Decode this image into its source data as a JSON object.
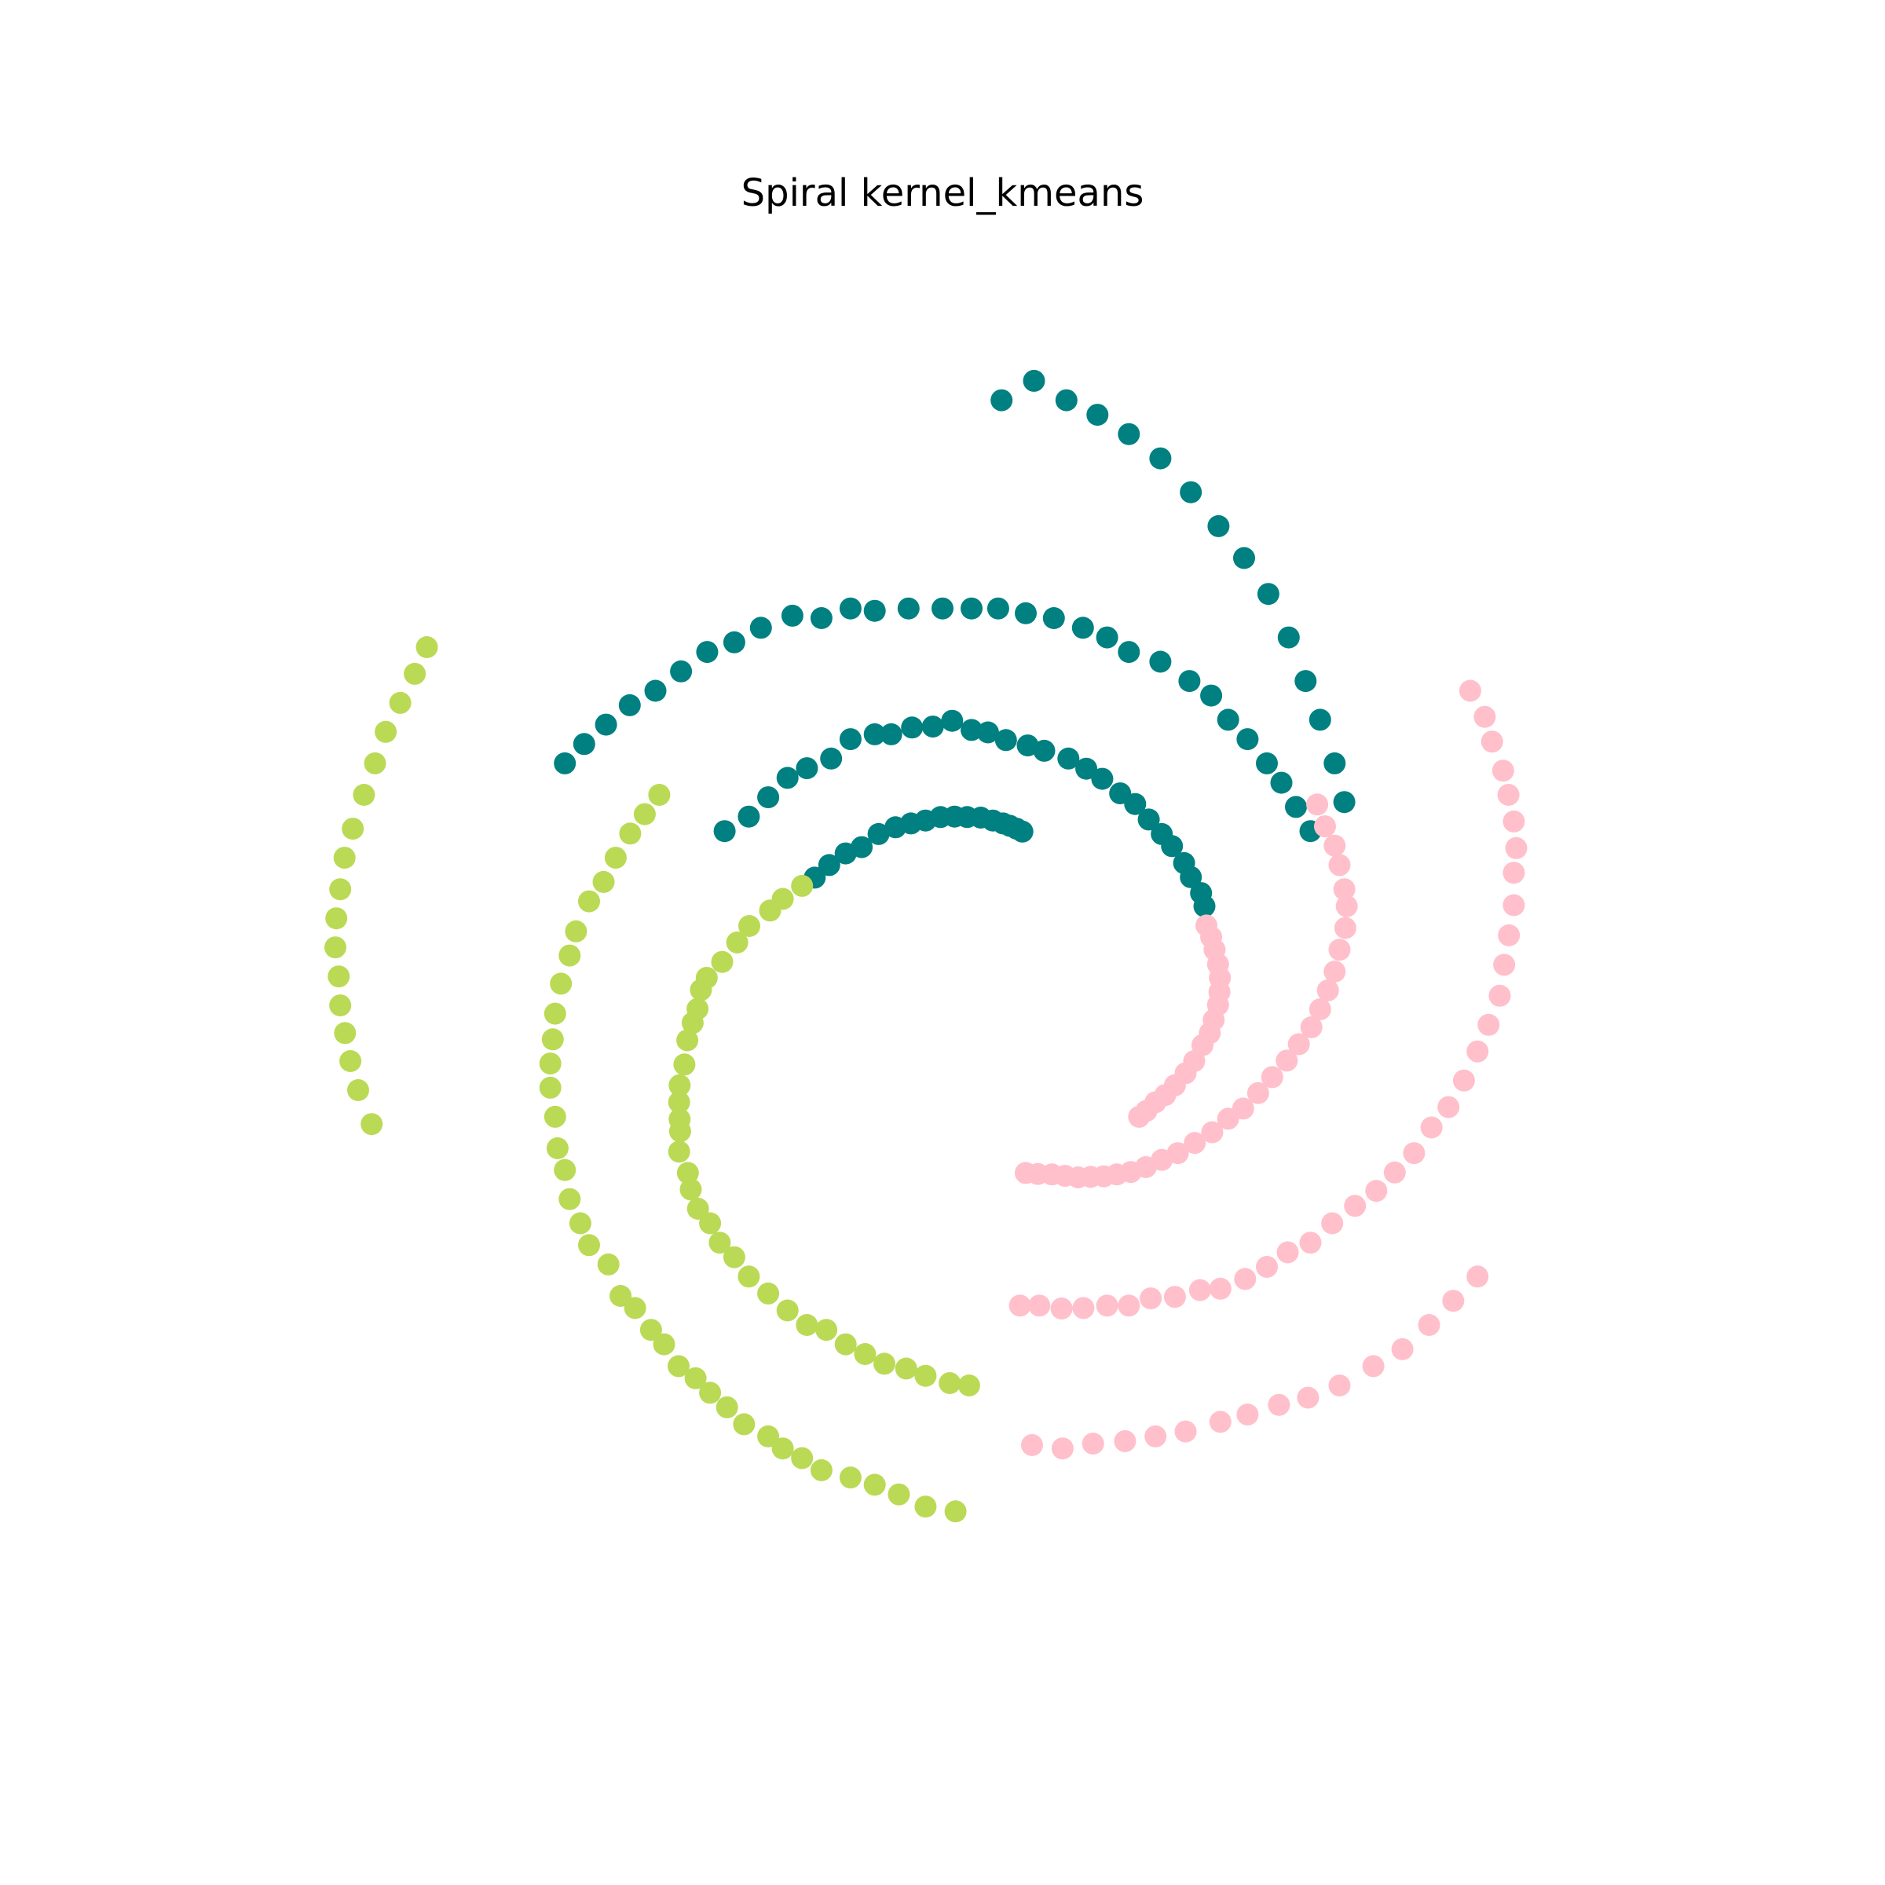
{
  "chart_data": {
    "type": "scatter",
    "title": "Spiral kernel_kmeans",
    "xlabel": "",
    "ylabel": "",
    "axes_visible": false,
    "grid": false,
    "legend": "none",
    "xlim": [
      -14.6,
      14.6
    ],
    "ylim": [
      -14.6,
      14.6
    ],
    "note_units": "data units (estimated; axes hidden in original)",
    "series": [
      {
        "color": "#008080",
        "points": [
          [
            1.22,
            11.2
          ],
          [
            1.89,
            11.6
          ],
          [
            2.56,
            11.2
          ],
          [
            3.2,
            10.9
          ],
          [
            3.85,
            10.5
          ],
          [
            4.5,
            10.0
          ],
          [
            5.13,
            9.3
          ],
          [
            5.7,
            8.6
          ],
          [
            6.23,
            7.94
          ],
          [
            6.73,
            7.2
          ],
          [
            7.15,
            6.3
          ],
          [
            7.5,
            5.4
          ],
          [
            7.8,
            4.6
          ],
          [
            8.1,
            3.7
          ],
          [
            8.3,
            2.9
          ],
          [
            -7.8,
            3.7
          ],
          [
            -7.4,
            4.1
          ],
          [
            -6.95,
            4.5
          ],
          [
            -6.46,
            4.9
          ],
          [
            -5.93,
            5.2
          ],
          [
            -5.4,
            5.6
          ],
          [
            -4.86,
            6.0
          ],
          [
            -4.3,
            6.2
          ],
          [
            -3.75,
            6.5
          ],
          [
            -3.1,
            6.75
          ],
          [
            -2.5,
            6.7
          ],
          [
            -1.9,
            6.9
          ],
          [
            -1.4,
            6.85
          ],
          [
            -0.7,
            6.9
          ],
          [
            0.0,
            6.9
          ],
          [
            0.6,
            6.9
          ],
          [
            1.15,
            6.9
          ],
          [
            1.72,
            6.8
          ],
          [
            2.3,
            6.7
          ],
          [
            2.9,
            6.5
          ],
          [
            3.4,
            6.3
          ],
          [
            3.85,
            6.0
          ],
          [
            4.5,
            5.8
          ],
          [
            5.1,
            5.4
          ],
          [
            5.55,
            5.1
          ],
          [
            5.9,
            4.6
          ],
          [
            6.3,
            4.2
          ],
          [
            6.7,
            3.7
          ],
          [
            7.0,
            3.3
          ],
          [
            7.3,
            2.8
          ],
          [
            7.6,
            2.3
          ],
          [
            -4.5,
            2.3
          ],
          [
            -4.0,
            2.6
          ],
          [
            -3.6,
            3.0
          ],
          [
            -3.2,
            3.4
          ],
          [
            -2.8,
            3.6
          ],
          [
            -2.3,
            3.8
          ],
          [
            -1.9,
            4.2
          ],
          [
            -1.4,
            4.3
          ],
          [
            -1.06,
            4.3
          ],
          [
            -0.63,
            4.44
          ],
          [
            -0.2,
            4.46
          ],
          [
            0.2,
            4.58
          ],
          [
            0.6,
            4.39
          ],
          [
            0.94,
            4.34
          ],
          [
            1.31,
            4.18
          ],
          [
            1.76,
            4.07
          ],
          [
            2.1,
            3.96
          ],
          [
            2.6,
            3.8
          ],
          [
            2.97,
            3.59
          ],
          [
            3.3,
            3.38
          ],
          [
            3.67,
            3.08
          ],
          [
            3.98,
            2.86
          ],
          [
            4.26,
            2.54
          ],
          [
            4.53,
            2.24
          ],
          [
            4.74,
            1.99
          ],
          [
            4.99,
            1.64
          ],
          [
            5.13,
            1.35
          ],
          [
            5.34,
            1.02
          ],
          [
            5.41,
            0.75
          ],
          [
            -2.64,
            1.34
          ],
          [
            -2.34,
            1.6
          ],
          [
            -2.0,
            1.84
          ],
          [
            -1.67,
            1.97
          ],
          [
            -1.32,
            2.24
          ],
          [
            -0.97,
            2.38
          ],
          [
            -0.65,
            2.46
          ],
          [
            -0.35,
            2.52
          ],
          [
            -0.04,
            2.59
          ],
          [
            0.25,
            2.6
          ],
          [
            0.51,
            2.59
          ],
          [
            0.79,
            2.58
          ],
          [
            1.04,
            2.52
          ],
          [
            1.25,
            2.46
          ],
          [
            1.39,
            2.41
          ],
          [
            1.53,
            2.35
          ],
          [
            1.65,
            2.29
          ]
        ]
      },
      {
        "color": "#ffc0cb",
        "points": [
          [
            5.45,
            0.35
          ],
          [
            5.55,
            0.11
          ],
          [
            5.62,
            -0.15
          ],
          [
            5.69,
            -0.45
          ],
          [
            5.73,
            -0.73
          ],
          [
            5.72,
            -1.02
          ],
          [
            5.69,
            -1.29
          ],
          [
            5.6,
            -1.6
          ],
          [
            5.52,
            -1.87
          ],
          [
            5.37,
            -2.12
          ],
          [
            5.2,
            -2.45
          ],
          [
            5.02,
            -2.7
          ],
          [
            4.8,
            -2.95
          ],
          [
            4.6,
            -3.15
          ],
          [
            4.4,
            -3.3
          ],
          [
            4.21,
            -3.48
          ],
          [
            4.06,
            -3.6
          ],
          [
            1.72,
            -4.76
          ],
          [
            1.97,
            -4.78
          ],
          [
            2.26,
            -4.79
          ],
          [
            2.53,
            -4.82
          ],
          [
            2.8,
            -4.85
          ],
          [
            3.06,
            -4.84
          ],
          [
            3.33,
            -4.83
          ],
          [
            3.6,
            -4.79
          ],
          [
            3.89,
            -4.74
          ],
          [
            4.2,
            -4.64
          ],
          [
            4.53,
            -4.49
          ],
          [
            4.86,
            -4.35
          ],
          [
            5.21,
            -4.14
          ],
          [
            5.57,
            -3.92
          ],
          [
            5.9,
            -3.64
          ],
          [
            6.21,
            -3.43
          ],
          [
            6.52,
            -3.11
          ],
          [
            6.81,
            -2.78
          ],
          [
            7.11,
            -2.44
          ],
          [
            7.36,
            -2.1
          ],
          [
            7.62,
            -1.75
          ],
          [
            7.8,
            -1.38
          ],
          [
            7.96,
            -0.99
          ],
          [
            8.1,
            -0.6
          ],
          [
            8.2,
            -0.15
          ],
          [
            8.32,
            0.3
          ],
          [
            8.35,
            0.75
          ],
          [
            8.3,
            1.1
          ],
          [
            8.2,
            1.6
          ],
          [
            8.1,
            2.0
          ],
          [
            7.9,
            2.4
          ],
          [
            7.74,
            2.85
          ],
          [
            1.6,
            -7.5
          ],
          [
            2.0,
            -7.5
          ],
          [
            2.46,
            -7.56
          ],
          [
            2.91,
            -7.55
          ],
          [
            3.4,
            -7.5
          ],
          [
            3.85,
            -7.5
          ],
          [
            4.3,
            -7.35
          ],
          [
            4.8,
            -7.32
          ],
          [
            5.32,
            -7.18
          ],
          [
            5.74,
            -7.15
          ],
          [
            6.25,
            -6.95
          ],
          [
            6.7,
            -6.7
          ],
          [
            7.13,
            -6.4
          ],
          [
            7.6,
            -6.2
          ],
          [
            8.05,
            -5.8
          ],
          [
            8.52,
            -5.44
          ],
          [
            8.96,
            -5.13
          ],
          [
            9.34,
            -4.75
          ],
          [
            9.74,
            -4.35
          ],
          [
            10.1,
            -3.82
          ],
          [
            10.45,
            -3.4
          ],
          [
            10.77,
            -2.85
          ],
          [
            11.05,
            -2.25
          ],
          [
            11.28,
            -1.7
          ],
          [
            11.51,
            -1.1
          ],
          [
            11.6,
            -0.46
          ],
          [
            11.7,
            0.15
          ],
          [
            11.8,
            0.77
          ],
          [
            11.8,
            1.44
          ],
          [
            11.85,
            1.95
          ],
          [
            11.8,
            2.5
          ],
          [
            11.69,
            3.05
          ],
          [
            11.58,
            3.55
          ],
          [
            11.35,
            4.15
          ],
          [
            11.2,
            4.66
          ],
          [
            10.9,
            5.2
          ],
          [
            1.85,
            -10.38
          ],
          [
            2.48,
            -10.45
          ],
          [
            3.11,
            -10.35
          ],
          [
            3.77,
            -10.3
          ],
          [
            4.4,
            -10.2
          ],
          [
            5.02,
            -10.1
          ],
          [
            5.74,
            -9.9
          ],
          [
            6.3,
            -9.75
          ],
          [
            6.95,
            -9.55
          ],
          [
            7.55,
            -9.4
          ],
          [
            8.2,
            -9.15
          ],
          [
            8.9,
            -8.75
          ],
          [
            9.5,
            -8.4
          ],
          [
            10.05,
            -7.9
          ],
          [
            10.55,
            -7.4
          ],
          [
            11.05,
            -6.9
          ]
        ]
      },
      {
        "color": "#bada55",
        "points": [
          [
            -2.9,
            1.17
          ],
          [
            -3.3,
            0.9
          ],
          [
            -3.56,
            0.66
          ],
          [
            -3.99,
            0.34
          ],
          [
            -4.24,
            0.0
          ],
          [
            -4.55,
            -0.4
          ],
          [
            -4.87,
            -0.73
          ],
          [
            -4.99,
            -0.98
          ],
          [
            -5.06,
            -1.37
          ],
          [
            -5.16,
            -1.66
          ],
          [
            -5.27,
            -2.02
          ],
          [
            -5.33,
            -2.52
          ],
          [
            -5.43,
            -2.95
          ],
          [
            -5.44,
            -3.3
          ],
          [
            -5.43,
            -3.65
          ],
          [
            -5.42,
            -3.9
          ],
          [
            -5.44,
            -4.32
          ],
          [
            -5.26,
            -4.76
          ],
          [
            -5.2,
            -5.1
          ],
          [
            -5.05,
            -5.5
          ],
          [
            -4.8,
            -5.8
          ],
          [
            -4.6,
            -6.2
          ],
          [
            -4.3,
            -6.5
          ],
          [
            -4.0,
            -6.9
          ],
          [
            -3.6,
            -7.25
          ],
          [
            -3.2,
            -7.6
          ],
          [
            -2.8,
            -7.9
          ],
          [
            -2.4,
            -8.0
          ],
          [
            -2.0,
            -8.3
          ],
          [
            -1.6,
            -8.5
          ],
          [
            -1.2,
            -8.7
          ],
          [
            -0.75,
            -8.8
          ],
          [
            -0.35,
            -8.95
          ],
          [
            0.15,
            -9.1
          ],
          [
            0.55,
            -9.15
          ],
          [
            -5.85,
            3.05
          ],
          [
            -6.15,
            2.65
          ],
          [
            -6.45,
            2.25
          ],
          [
            -6.75,
            1.75
          ],
          [
            -7.0,
            1.25
          ],
          [
            -7.3,
            0.85
          ],
          [
            -7.57,
            0.23
          ],
          [
            -7.7,
            -0.27
          ],
          [
            -7.88,
            -0.85
          ],
          [
            -8.0,
            -1.47
          ],
          [
            -8.05,
            -2.0
          ],
          [
            -8.1,
            -2.5
          ],
          [
            -8.1,
            -3.0
          ],
          [
            -8.0,
            -3.6
          ],
          [
            -7.95,
            -4.25
          ],
          [
            -7.8,
            -4.7
          ],
          [
            -7.7,
            -5.3
          ],
          [
            -7.48,
            -5.8
          ],
          [
            -7.3,
            -6.25
          ],
          [
            -6.9,
            -6.65
          ],
          [
            -6.65,
            -7.3
          ],
          [
            -6.35,
            -7.55
          ],
          [
            -6.02,
            -8.0
          ],
          [
            -5.75,
            -8.3
          ],
          [
            -5.45,
            -8.75
          ],
          [
            -5.1,
            -9.0
          ],
          [
            -4.8,
            -9.3
          ],
          [
            -4.45,
            -9.6
          ],
          [
            -4.1,
            -9.95
          ],
          [
            -3.6,
            -10.2
          ],
          [
            -3.3,
            -10.45
          ],
          [
            -2.9,
            -10.65
          ],
          [
            -2.5,
            -10.9
          ],
          [
            -1.9,
            -11.05
          ],
          [
            -1.4,
            -11.2
          ],
          [
            -0.9,
            -11.4
          ],
          [
            -0.35,
            -11.65
          ],
          [
            0.27,
            -11.75
          ],
          [
            -10.65,
            6.1
          ],
          [
            -10.9,
            5.55
          ],
          [
            -11.2,
            4.95
          ],
          [
            -11.5,
            4.35
          ],
          [
            -11.72,
            3.7
          ],
          [
            -11.95,
            3.05
          ],
          [
            -12.18,
            2.35
          ],
          [
            -12.35,
            1.75
          ],
          [
            -12.44,
            1.1
          ],
          [
            -12.52,
            0.5
          ],
          [
            -12.54,
            -0.1
          ],
          [
            -12.47,
            -0.7
          ],
          [
            -12.44,
            -1.3
          ],
          [
            -12.34,
            -1.87
          ],
          [
            -12.23,
            -2.45
          ],
          [
            -12.07,
            -3.05
          ],
          [
            -11.79,
            -3.75
          ]
        ]
      }
    ]
  }
}
